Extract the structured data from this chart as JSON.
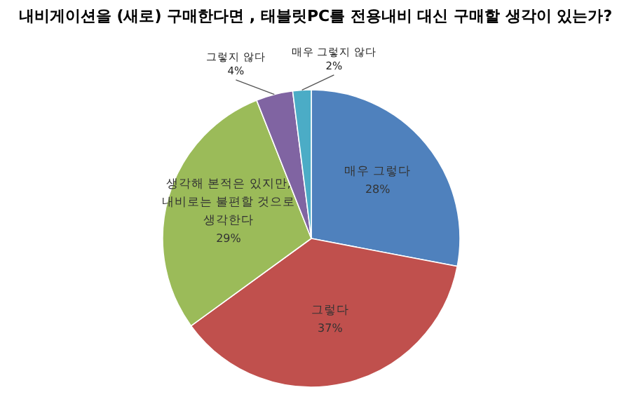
{
  "chart_data": {
    "type": "pie",
    "title": "내비게이션을 (새로) 구매한다면 , 태블릿PC를 전용내비 대신 구매할 생각이 있는가?",
    "categories": [
      "매우 그렇다",
      "그렇다",
      "생각해 본적은 있지만, 내비로는 불편할 것으로 생각한다",
      "그렇지 않다",
      "매우 그렇지 않다"
    ],
    "values": [
      28,
      37,
      29,
      4,
      2
    ],
    "value_labels": [
      "28%",
      "37%",
      "29%",
      "4%",
      "2%"
    ],
    "colors": [
      "#4f81bd",
      "#c0504d",
      "#9bbb59",
      "#8064a2",
      "#4bacc6"
    ]
  }
}
